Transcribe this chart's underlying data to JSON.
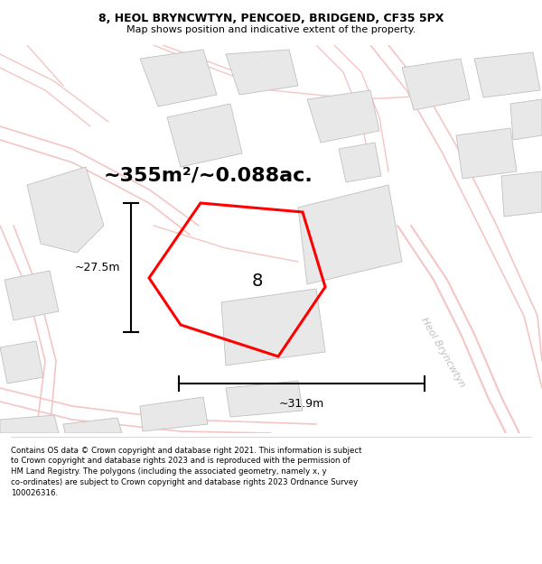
{
  "title_line1": "8, HEOL BRYNCWTYN, PENCOED, BRIDGEND, CF35 5PX",
  "title_line2": "Map shows position and indicative extent of the property.",
  "area_text": "~355m²/~0.088ac.",
  "dim_width": "~31.9m",
  "dim_height": "~27.5m",
  "label_number": "8",
  "street_name": "Heol Bryncwtyn",
  "footer_text": "Contains OS data © Crown copyright and database right 2021. This information is subject to Crown copyright and database rights 2023 and is reproduced with the permission of HM Land Registry. The polygons (including the associated geometry, namely x, y co-ordinates) are subject to Crown copyright and database rights 2023 Ordnance Survey 100026316.",
  "map_bg": "#ffffff",
  "highlight_color": "#ff0000",
  "road_color": "#f5c5c5",
  "building_fill": "#e8e8e8",
  "building_edge": "#c0c0c0",
  "fig_width": 6.0,
  "fig_height": 6.25,
  "title_fs": 9.0,
  "subtitle_fs": 8.0,
  "area_fs": 16,
  "dim_fs": 9,
  "label_fs": 14,
  "footer_fs": 6.2
}
